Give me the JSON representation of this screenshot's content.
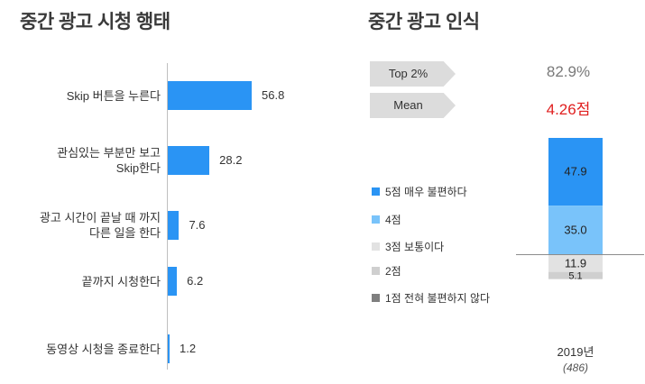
{
  "left_title": "중간 광고 시청 행태",
  "right_title": "중간 광고 인식",
  "summary": {
    "top2_label": "Top 2%",
    "top2_value": "82.9%",
    "mean_label": "Mean",
    "mean_value": "4.26점"
  },
  "chart_data": [
    {
      "type": "bar",
      "orientation": "horizontal",
      "title": "중간 광고 시청 행태",
      "categories": [
        [
          "Skip 버튼을 누른다"
        ],
        [
          "관심있는 부분만 보고",
          "Skip한다"
        ],
        [
          "광고 시간이 끝날 때 까지",
          "다른 일을 한다"
        ],
        [
          "끝까지 시청한다"
        ],
        [
          "동영상 시청을 종료한다"
        ]
      ],
      "values": [
        56.8,
        28.2,
        7.6,
        6.2,
        1.2
      ],
      "value_labels": [
        "56.8",
        "28.2",
        "7.6",
        "6.2",
        "1.2"
      ],
      "bar_color": "#2a94f4",
      "xlim": [
        0,
        100
      ]
    },
    {
      "type": "stacked_bar",
      "title": "중간 광고 인식",
      "categories": [
        "2019년"
      ],
      "sample_size": "(486)",
      "series": [
        {
          "name": "5점 매우 불편하다",
          "values": [
            47.9
          ],
          "label": "47.9",
          "color": "#2a94f4"
        },
        {
          "name": "4점",
          "values": [
            35.0
          ],
          "label": "35.0",
          "color": "#79c3fa"
        },
        {
          "name": "3점 보통이다",
          "values": [
            11.9
          ],
          "label": "11.9",
          "color": "#e2e2e2"
        },
        {
          "name": "2점",
          "values": [
            5.1
          ],
          "label": "5.1",
          "color": "#cfcfcf"
        },
        {
          "name": "1점 전혀 불편하지 않다",
          "values": [
            0
          ],
          "label": "",
          "color": "#7f7f7f"
        }
      ]
    }
  ]
}
